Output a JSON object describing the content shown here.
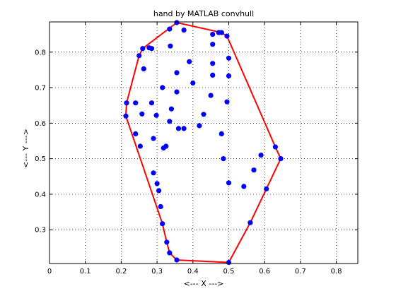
{
  "chart_data": {
    "type": "scatter",
    "title": "hand by MATLAB convhull",
    "xlabel": "<--- X --->",
    "ylabel": "<--- Y --->",
    "xlim": [
      0,
      0.86
    ],
    "ylim": [
      0.205,
      0.885
    ],
    "xticks": [
      "0",
      "0.1",
      "0.2",
      "0.3",
      "0.4",
      "0.5",
      "0.6",
      "0.7",
      "0.8"
    ],
    "yticks": [
      "0.3",
      "0.4",
      "0.5",
      "0.6",
      "0.7",
      "0.8"
    ],
    "grid": true,
    "point_color": "#0000ff",
    "hull_color": "#ff0000",
    "points": [
      [
        0.355,
        0.883
      ],
      [
        0.335,
        0.865
      ],
      [
        0.375,
        0.862
      ],
      [
        0.472,
        0.855
      ],
      [
        0.48,
        0.855
      ],
      [
        0.455,
        0.85
      ],
      [
        0.495,
        0.845
      ],
      [
        0.455,
        0.822
      ],
      [
        0.337,
        0.817
      ],
      [
        0.26,
        0.81
      ],
      [
        0.278,
        0.812
      ],
      [
        0.285,
        0.81
      ],
      [
        0.5,
        0.783
      ],
      [
        0.25,
        0.79
      ],
      [
        0.39,
        0.773
      ],
      [
        0.455,
        0.768
      ],
      [
        0.263,
        0.753
      ],
      [
        0.355,
        0.742
      ],
      [
        0.455,
        0.735
      ],
      [
        0.5,
        0.733
      ],
      [
        0.4,
        0.713
      ],
      [
        0.315,
        0.7
      ],
      [
        0.355,
        0.688
      ],
      [
        0.45,
        0.678
      ],
      [
        0.495,
        0.66
      ],
      [
        0.215,
        0.657
      ],
      [
        0.24,
        0.657
      ],
      [
        0.285,
        0.657
      ],
      [
        0.34,
        0.64
      ],
      [
        0.258,
        0.626
      ],
      [
        0.298,
        0.622
      ],
      [
        0.43,
        0.625
      ],
      [
        0.213,
        0.62
      ],
      [
        0.335,
        0.605
      ],
      [
        0.418,
        0.593
      ],
      [
        0.36,
        0.585
      ],
      [
        0.375,
        0.585
      ],
      [
        0.48,
        0.57
      ],
      [
        0.24,
        0.57
      ],
      [
        0.29,
        0.557
      ],
      [
        0.253,
        0.535
      ],
      [
        0.325,
        0.535
      ],
      [
        0.318,
        0.53
      ],
      [
        0.485,
        0.5
      ],
      [
        0.59,
        0.51
      ],
      [
        0.63,
        0.533
      ],
      [
        0.645,
        0.5
      ],
      [
        0.57,
        0.468
      ],
      [
        0.29,
        0.46
      ],
      [
        0.3,
        0.43
      ],
      [
        0.5,
        0.432
      ],
      [
        0.542,
        0.422
      ],
      [
        0.305,
        0.41
      ],
      [
        0.605,
        0.415
      ],
      [
        0.31,
        0.365
      ],
      [
        0.315,
        0.317
      ],
      [
        0.56,
        0.32
      ],
      [
        0.327,
        0.265
      ],
      [
        0.335,
        0.235
      ],
      [
        0.355,
        0.215
      ],
      [
        0.5,
        0.208
      ]
    ],
    "hull": [
      [
        0.355,
        0.883
      ],
      [
        0.48,
        0.855
      ],
      [
        0.495,
        0.845
      ],
      [
        0.63,
        0.533
      ],
      [
        0.645,
        0.5
      ],
      [
        0.605,
        0.415
      ],
      [
        0.56,
        0.32
      ],
      [
        0.5,
        0.208
      ],
      [
        0.355,
        0.215
      ],
      [
        0.335,
        0.235
      ],
      [
        0.327,
        0.265
      ],
      [
        0.315,
        0.317
      ],
      [
        0.213,
        0.62
      ],
      [
        0.215,
        0.657
      ],
      [
        0.25,
        0.79
      ],
      [
        0.26,
        0.81
      ],
      [
        0.355,
        0.883
      ]
    ]
  }
}
